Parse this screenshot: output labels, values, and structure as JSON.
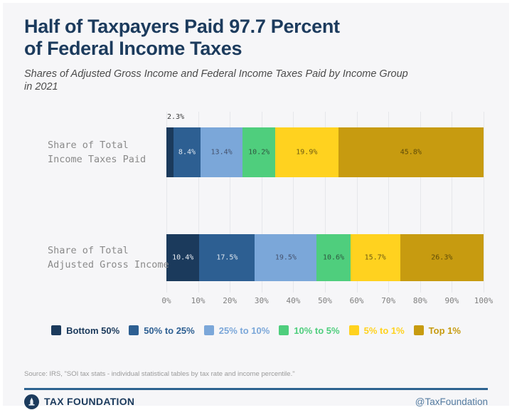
{
  "header": {
    "title_line1": "Half of Taxpayers Paid 97.7 Percent",
    "title_line2": "of Federal Income Taxes",
    "subtitle_line1": "Shares of Adjusted Gross Income and Federal Income Taxes Paid by Income Group",
    "subtitle_line2": "in 2021"
  },
  "chart_data": {
    "type": "bar",
    "orientation": "horizontal-stacked",
    "title": "Half of Taxpayers Paid 97.7 Percent of Federal Income Taxes",
    "subtitle": "Shares of Adjusted Gross Income and Federal Income Taxes Paid by Income Group in 2021",
    "categories": [
      "Share of Total\nIncome Taxes Paid",
      "Share of Total\nAdjusted Gross Income"
    ],
    "series": [
      {
        "name": "Bottom 50%",
        "color": "#1b3a5c",
        "label_color": "#e9eef4",
        "values": [
          2.3,
          10.4
        ]
      },
      {
        "name": "50% to 25%",
        "color": "#2d5f92",
        "label_color": "#dfe7f0",
        "values": [
          8.4,
          17.5
        ]
      },
      {
        "name": "25% to 10%",
        "color": "#7ba7d9",
        "label_color": "#45526d",
        "values": [
          13.4,
          19.5
        ]
      },
      {
        "name": "10% to 5%",
        "color": "#4fce7d",
        "label_color": "#2f5740",
        "values": [
          10.2,
          10.6
        ]
      },
      {
        "name": "5% to 1%",
        "color": "#ffd21f",
        "label_color": "#6e5a12",
        "values": [
          19.9,
          15.7
        ]
      },
      {
        "name": "Top 1%",
        "color": "#c79b10",
        "label_color": "#5f4c08",
        "values": [
          45.8,
          26.3
        ]
      }
    ],
    "x_ticks": [
      "0%",
      "10%",
      "20%",
      "30%",
      "40%",
      "50%",
      "60%",
      "70%",
      "80%",
      "90%",
      "100%"
    ],
    "xlim": [
      0,
      100
    ],
    "grid": "vertical",
    "legend_position": "bottom",
    "value_suffix": "%",
    "outside_label_threshold": 4
  },
  "footer": {
    "source": "Source: IRS, \"SOI tax stats - individual statistical tables by tax rate and income percentile.\"",
    "brand": "TAX FOUNDATION",
    "handle": "@TaxFoundation"
  }
}
